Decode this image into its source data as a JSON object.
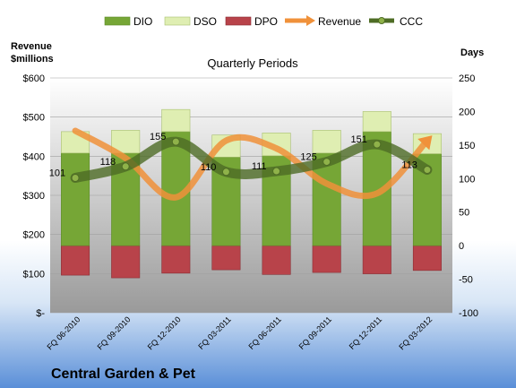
{
  "chart_data": {
    "type": "bar",
    "title": "Quarterly Periods",
    "company": "Central Garden & Pet",
    "left_axis_label_line1": "Revenue",
    "left_axis_label_line2": "$millions",
    "right_axis_label": "Days",
    "categories": [
      "FQ 06-2010",
      "FQ 09-2010",
      "FQ 12-2010",
      "FQ 03-2011",
      "FQ 06-2011",
      "FQ 09-2011",
      "FQ 12-2011",
      "FQ 03-2012"
    ],
    "left_ylim": [
      0,
      600
    ],
    "left_ticks": [
      0,
      100,
      200,
      300,
      400,
      500,
      600
    ],
    "left_tick_labels": [
      "$-",
      "$100",
      "$200",
      "$300",
      "$400",
      "$500",
      "$600"
    ],
    "right_ylim": [
      -100,
      250
    ],
    "right_ticks": [
      -100,
      -50,
      0,
      50,
      100,
      150,
      200,
      250
    ],
    "series": [
      {
        "name": "DIO",
        "values": [
          138,
          138,
          170,
          132,
          134,
          138,
          170,
          137
        ],
        "color": "#76a636"
      },
      {
        "name": "DSO",
        "values": [
          32,
          34,
          33,
          33,
          34,
          34,
          30,
          30
        ],
        "color": "#dfeeb2"
      },
      {
        "name": "DPO",
        "values": [
          -44,
          -48,
          -41,
          -36,
          -43,
          -40,
          -42,
          -37
        ],
        "color": "#b8434a"
      },
      {
        "name": "Revenue",
        "values": [
          465,
          395,
          295,
          440,
          420,
          330,
          305,
          440
        ],
        "color": "#f0913a"
      },
      {
        "name": "CCC",
        "values": [
          101,
          118,
          155,
          110,
          111,
          125,
          151,
          113
        ],
        "color": "#4e6c25"
      }
    ],
    "ccc_labels": [
      "101",
      "118",
      "155",
      "110",
      "111",
      "125",
      "151",
      "113"
    ]
  }
}
